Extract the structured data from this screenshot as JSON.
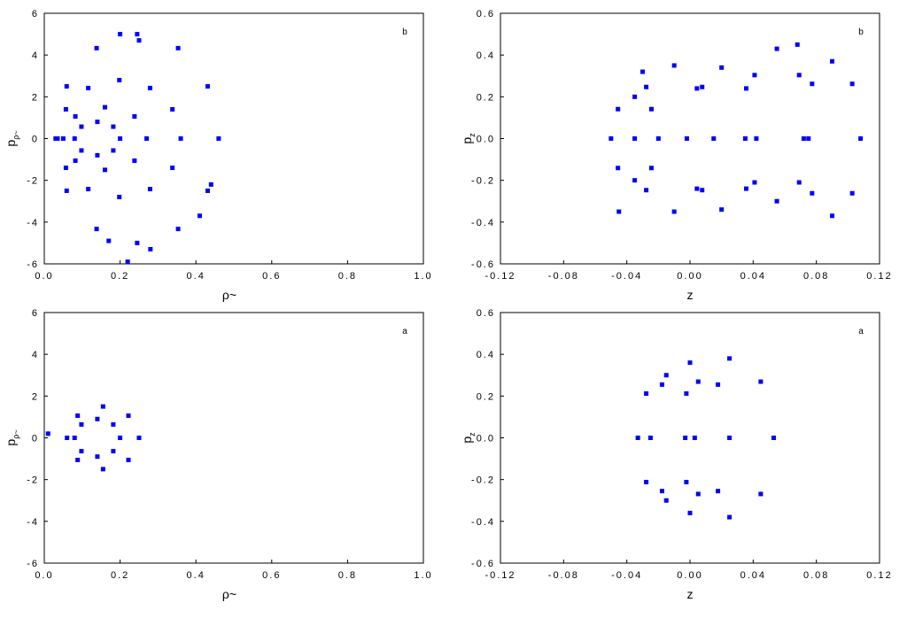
{
  "chart_data": [
    {
      "type": "scatter",
      "annotation": "b",
      "x_label": "ρ~",
      "y_label": "p",
      "y_label_sub": "ρ~",
      "color": "#0000ff",
      "xlim": [
        0,
        1
      ],
      "xticks": [
        {
          "value": 0,
          "label": "0.0"
        },
        0.2,
        0.4,
        0.6,
        0.8,
        {
          "value": 1,
          "label": "1.0"
        }
      ],
      "ylim": [
        -6,
        6
      ],
      "yticks": [
        -6,
        -4,
        -2,
        0,
        2,
        4,
        6
      ],
      "x": [
        0.46,
        0.431,
        0.353,
        0.245,
        0.138,
        0.059,
        0.03,
        0.059,
        0.138,
        0.245,
        0.353,
        0.431,
        0.36,
        0.338,
        0.279,
        0.198,
        0.116,
        0.057,
        0.035,
        0.057,
        0.116,
        0.198,
        0.279,
        0.338,
        0.27,
        0.238,
        0.16,
        0.082,
        0.05,
        0.082,
        0.16,
        0.238,
        0.2,
        0.182,
        0.14,
        0.098,
        0.08,
        0.098,
        0.14,
        0.182,
        0.2,
        0.25,
        0.28,
        0.22,
        0.17,
        0.41,
        0.44
      ],
      "values": [
        0,
        2.5,
        4.33,
        5,
        4.33,
        2.5,
        0,
        -2.5,
        -4.33,
        -5,
        -4.33,
        -2.5,
        0,
        1.4,
        2.42,
        2.8,
        2.42,
        1.4,
        0,
        -1.4,
        -2.42,
        -2.8,
        -2.42,
        -1.4,
        0,
        1.06,
        1.5,
        1.06,
        0,
        -1.06,
        -1.5,
        -1.06,
        0,
        0.57,
        0.8,
        0.57,
        0,
        -0.57,
        -0.8,
        -0.57,
        5,
        4.7,
        -5.3,
        -5.9,
        -4.9,
        -3.7,
        -2.2
      ]
    },
    {
      "type": "scatter",
      "annotation": "b",
      "x_label": "z",
      "y_label": "p",
      "y_label_sub": "z",
      "color": "#0000ff",
      "xlim": [
        -0.12,
        0.12
      ],
      "xticks": [
        -0.12,
        -0.08,
        -0.04,
        {
          "value": 0,
          "label": "0.00"
        },
        0.04,
        0.08,
        0.12
      ],
      "ylim": [
        -0.6,
        0.6
      ],
      "yticks": [
        -0.6,
        -0.4,
        -0.2,
        {
          "value": 0,
          "label": "0.0"
        },
        0.2,
        0.4,
        0.6
      ],
      "x": [
        -0.02,
        -0.0244,
        -0.035,
        -0.0456,
        -0.05,
        -0.0456,
        -0.035,
        -0.0244,
        0.015,
        0.0077,
        -0.01,
        -0.0277,
        -0.035,
        -0.0277,
        -0.01,
        0.0077,
        0.042,
        0.0356,
        0.02,
        0.0044,
        -0.002,
        0.0044,
        0.02,
        0.0356,
        0.075,
        0.0691,
        0.055,
        0.0409,
        0.035,
        0.0409,
        0.055,
        0.0691,
        0.108,
        0.1027,
        0.09,
        0.0773,
        0.072,
        0.0773,
        0.09,
        0.1027,
        -0.045,
        -0.03,
        0.068
      ],
      "values": [
        0,
        0.141,
        0.2,
        0.141,
        0,
        -0.141,
        -0.2,
        -0.141,
        0,
        0.247,
        0.35,
        0.247,
        0,
        -0.247,
        -0.35,
        -0.247,
        0,
        0.24,
        0.34,
        0.24,
        0,
        -0.24,
        -0.34,
        -0.24,
        0,
        0.304,
        0.43,
        0.304,
        0,
        -0.21,
        -0.3,
        -0.21,
        0,
        0.262,
        0.37,
        0.262,
        0,
        -0.262,
        -0.37,
        -0.262,
        -0.35,
        0.32,
        0.45
      ]
    },
    {
      "type": "scatter",
      "annotation": "a",
      "x_label": "ρ~",
      "y_label": "p",
      "y_label_sub": "ρ~",
      "color": "#0000ff",
      "xlim": [
        0,
        1
      ],
      "xticks": [
        {
          "value": 0,
          "label": "0.0"
        },
        0.2,
        0.4,
        0.6,
        0.8,
        {
          "value": 1,
          "label": "1.0"
        }
      ],
      "ylim": [
        -6,
        6
      ],
      "yticks": [
        -6,
        -4,
        -2,
        0,
        2,
        4,
        6
      ],
      "x": [
        0.25,
        0.222,
        0.155,
        0.088,
        0.06,
        0.088,
        0.155,
        0.222,
        0.2,
        0.182,
        0.14,
        0.098,
        0.08,
        0.098,
        0.14,
        0.182,
        0.01
      ],
      "values": [
        0,
        1.06,
        1.5,
        1.06,
        0,
        -1.06,
        -1.5,
        -1.06,
        0,
        0.64,
        0.9,
        0.64,
        0,
        -0.64,
        -0.9,
        -0.64,
        0.2
      ]
    },
    {
      "type": "scatter",
      "annotation": "a",
      "x_label": "z",
      "y_label": "p",
      "y_label_sub": "z",
      "color": "#0000ff",
      "xlim": [
        -0.12,
        0.12
      ],
      "xticks": [
        -0.12,
        -0.08,
        -0.04,
        {
          "value": 0,
          "label": "0.00"
        },
        0.04,
        0.08,
        0.12
      ],
      "ylim": [
        -0.6,
        0.6
      ],
      "yticks": [
        -0.6,
        -0.4,
        -0.2,
        {
          "value": 0,
          "label": "0.0"
        },
        0.2,
        0.4,
        0.6
      ],
      "x": [
        0.003,
        -0.0023,
        -0.015,
        -0.0277,
        -0.033,
        -0.0277,
        -0.015,
        -0.0023,
        0.025,
        0.0177,
        0,
        -0.0177,
        -0.025,
        -0.0177,
        0,
        0.0177,
        0.053,
        0.0448,
        0.025,
        0.0052,
        -0.003,
        0.0052,
        0.025,
        0.0448
      ],
      "values": [
        0,
        0.212,
        0.3,
        0.212,
        0,
        -0.212,
        -0.3,
        -0.212,
        0,
        0.255,
        0.36,
        0.255,
        0,
        -0.255,
        -0.36,
        -0.255,
        0,
        0.269,
        0.38,
        0.269,
        0,
        -0.269,
        -0.38,
        -0.269
      ]
    }
  ]
}
